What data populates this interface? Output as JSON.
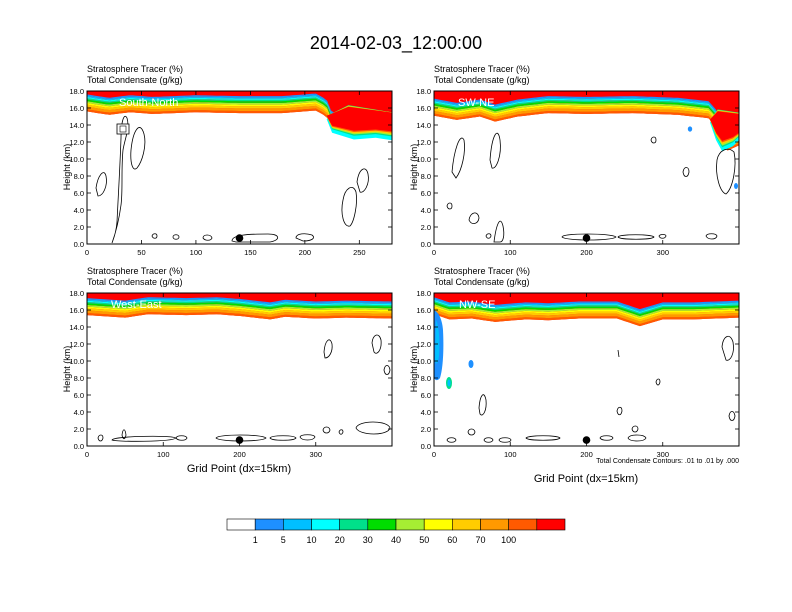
{
  "title": "2014-02-03_12:00:00",
  "footnote": "Total Condensate Contours: .01 to .01 by .000",
  "chart_data": {
    "type": "heatmap",
    "series_labels": {
      "shaded": "Stratosphere Tracer   (%)",
      "contour": "Total Condensate   (g/kg)"
    },
    "ylabel": "Height (km)",
    "xlabel": "Grid Point (dx=15km)",
    "ylim": [
      0,
      18
    ],
    "yticks": [
      "0.0",
      "2.0",
      "4.0",
      "6.0",
      "8.0",
      "10.0",
      "12.0",
      "14.0",
      "16.0",
      "18.0"
    ],
    "colorbar": {
      "levels": [
        "1",
        "5",
        "10",
        "20",
        "30",
        "40",
        "50",
        "60",
        "70",
        "100"
      ],
      "colors": [
        "#ffffff",
        "#1e90ff",
        "#00bfff",
        "#00ffff",
        "#00e08a",
        "#00dd00",
        "#a6ee33",
        "#ffff00",
        "#ffcc00",
        "#ff9900",
        "#ff5a00",
        "#ff0000"
      ]
    },
    "panels": [
      {
        "label": "South-North",
        "xmax": 280,
        "xticks": [
          {
            "v": 0,
            "label": "0"
          },
          {
            "v": 50,
            "label": "50"
          },
          {
            "v": 100,
            "label": "100"
          },
          {
            "v": 150,
            "label": "150"
          },
          {
            "v": 200,
            "label": "200"
          },
          {
            "v": 250,
            "label": "250"
          }
        ],
        "marker_x": 140,
        "tropopause": [
          [
            0,
            15.6
          ],
          [
            20,
            15.2
          ],
          [
            40,
            15.5
          ],
          [
            60,
            15.3
          ],
          [
            100,
            15.5
          ],
          [
            140,
            15.4
          ],
          [
            180,
            15.4
          ],
          [
            210,
            15.7
          ],
          [
            220,
            15.0
          ],
          [
            225,
            13.4
          ],
          [
            235,
            13.3
          ],
          [
            250,
            13.6
          ],
          [
            265,
            13.4
          ],
          [
            275,
            13.2
          ],
          [
            280,
            12.9
          ]
        ],
        "strat_blob": [
          [
            220,
            15.0
          ],
          [
            225,
            13.4
          ],
          [
            245,
            12.6
          ],
          [
            265,
            12.8
          ],
          [
            280,
            12.5
          ],
          [
            280,
            15.5
          ],
          [
            240,
            16.4
          ]
        ]
      },
      {
        "label": "SW-NE",
        "xmax": 400,
        "xticks": [
          {
            "v": 0,
            "label": "0"
          },
          {
            "v": 100,
            "label": "100"
          },
          {
            "v": 200,
            "label": "200"
          },
          {
            "v": 300,
            "label": "300"
          }
        ],
        "marker_x": 200,
        "tropopause": [
          [
            0,
            15.1
          ],
          [
            30,
            14.6
          ],
          [
            60,
            15.0
          ],
          [
            80,
            14.4
          ],
          [
            110,
            15.0
          ],
          [
            150,
            15.4
          ],
          [
            200,
            15.3
          ],
          [
            260,
            15.4
          ],
          [
            320,
            15.2
          ],
          [
            360,
            14.8
          ],
          [
            370,
            13.8
          ],
          [
            375,
            11.8
          ],
          [
            385,
            11.0
          ],
          [
            400,
            11.6
          ]
        ],
        "strat_blob": [
          [
            362,
            14.6
          ],
          [
            370,
            12.5
          ],
          [
            378,
            11.2
          ],
          [
            392,
            11.8
          ],
          [
            400,
            12.5
          ],
          [
            400,
            15.5
          ],
          [
            372,
            15.9
          ]
        ]
      },
      {
        "label": "West-East",
        "xmax": 400,
        "xticks": [
          {
            "v": 0,
            "label": "0"
          },
          {
            "v": 100,
            "label": "100"
          },
          {
            "v": 200,
            "label": "200"
          },
          {
            "v": 300,
            "label": "300"
          }
        ],
        "marker_x": 200,
        "tropopause": [
          [
            0,
            15.4
          ],
          [
            50,
            15.1
          ],
          [
            80,
            15.5
          ],
          [
            130,
            15.4
          ],
          [
            170,
            15.5
          ],
          [
            200,
            15.3
          ],
          [
            240,
            14.9
          ],
          [
            260,
            15.2
          ],
          [
            300,
            15.0
          ],
          [
            340,
            15.1
          ],
          [
            400,
            15.0
          ]
        ],
        "strat_blob": []
      },
      {
        "label": "NW-SE",
        "xmax": 400,
        "xticks": [
          {
            "v": 0,
            "label": "0"
          },
          {
            "v": 100,
            "label": "100"
          },
          {
            "v": 200,
            "label": "200"
          },
          {
            "v": 300,
            "label": "300"
          }
        ],
        "marker_x": 200,
        "tropopause": [
          [
            0,
            15.5
          ],
          [
            20,
            14.9
          ],
          [
            50,
            15.0
          ],
          [
            80,
            14.6
          ],
          [
            120,
            14.9
          ],
          [
            150,
            14.8
          ],
          [
            190,
            15.0
          ],
          [
            240,
            15.0
          ],
          [
            270,
            14.1
          ],
          [
            300,
            14.9
          ],
          [
            340,
            14.9
          ],
          [
            400,
            15.1
          ]
        ],
        "strat_blob": []
      }
    ]
  }
}
